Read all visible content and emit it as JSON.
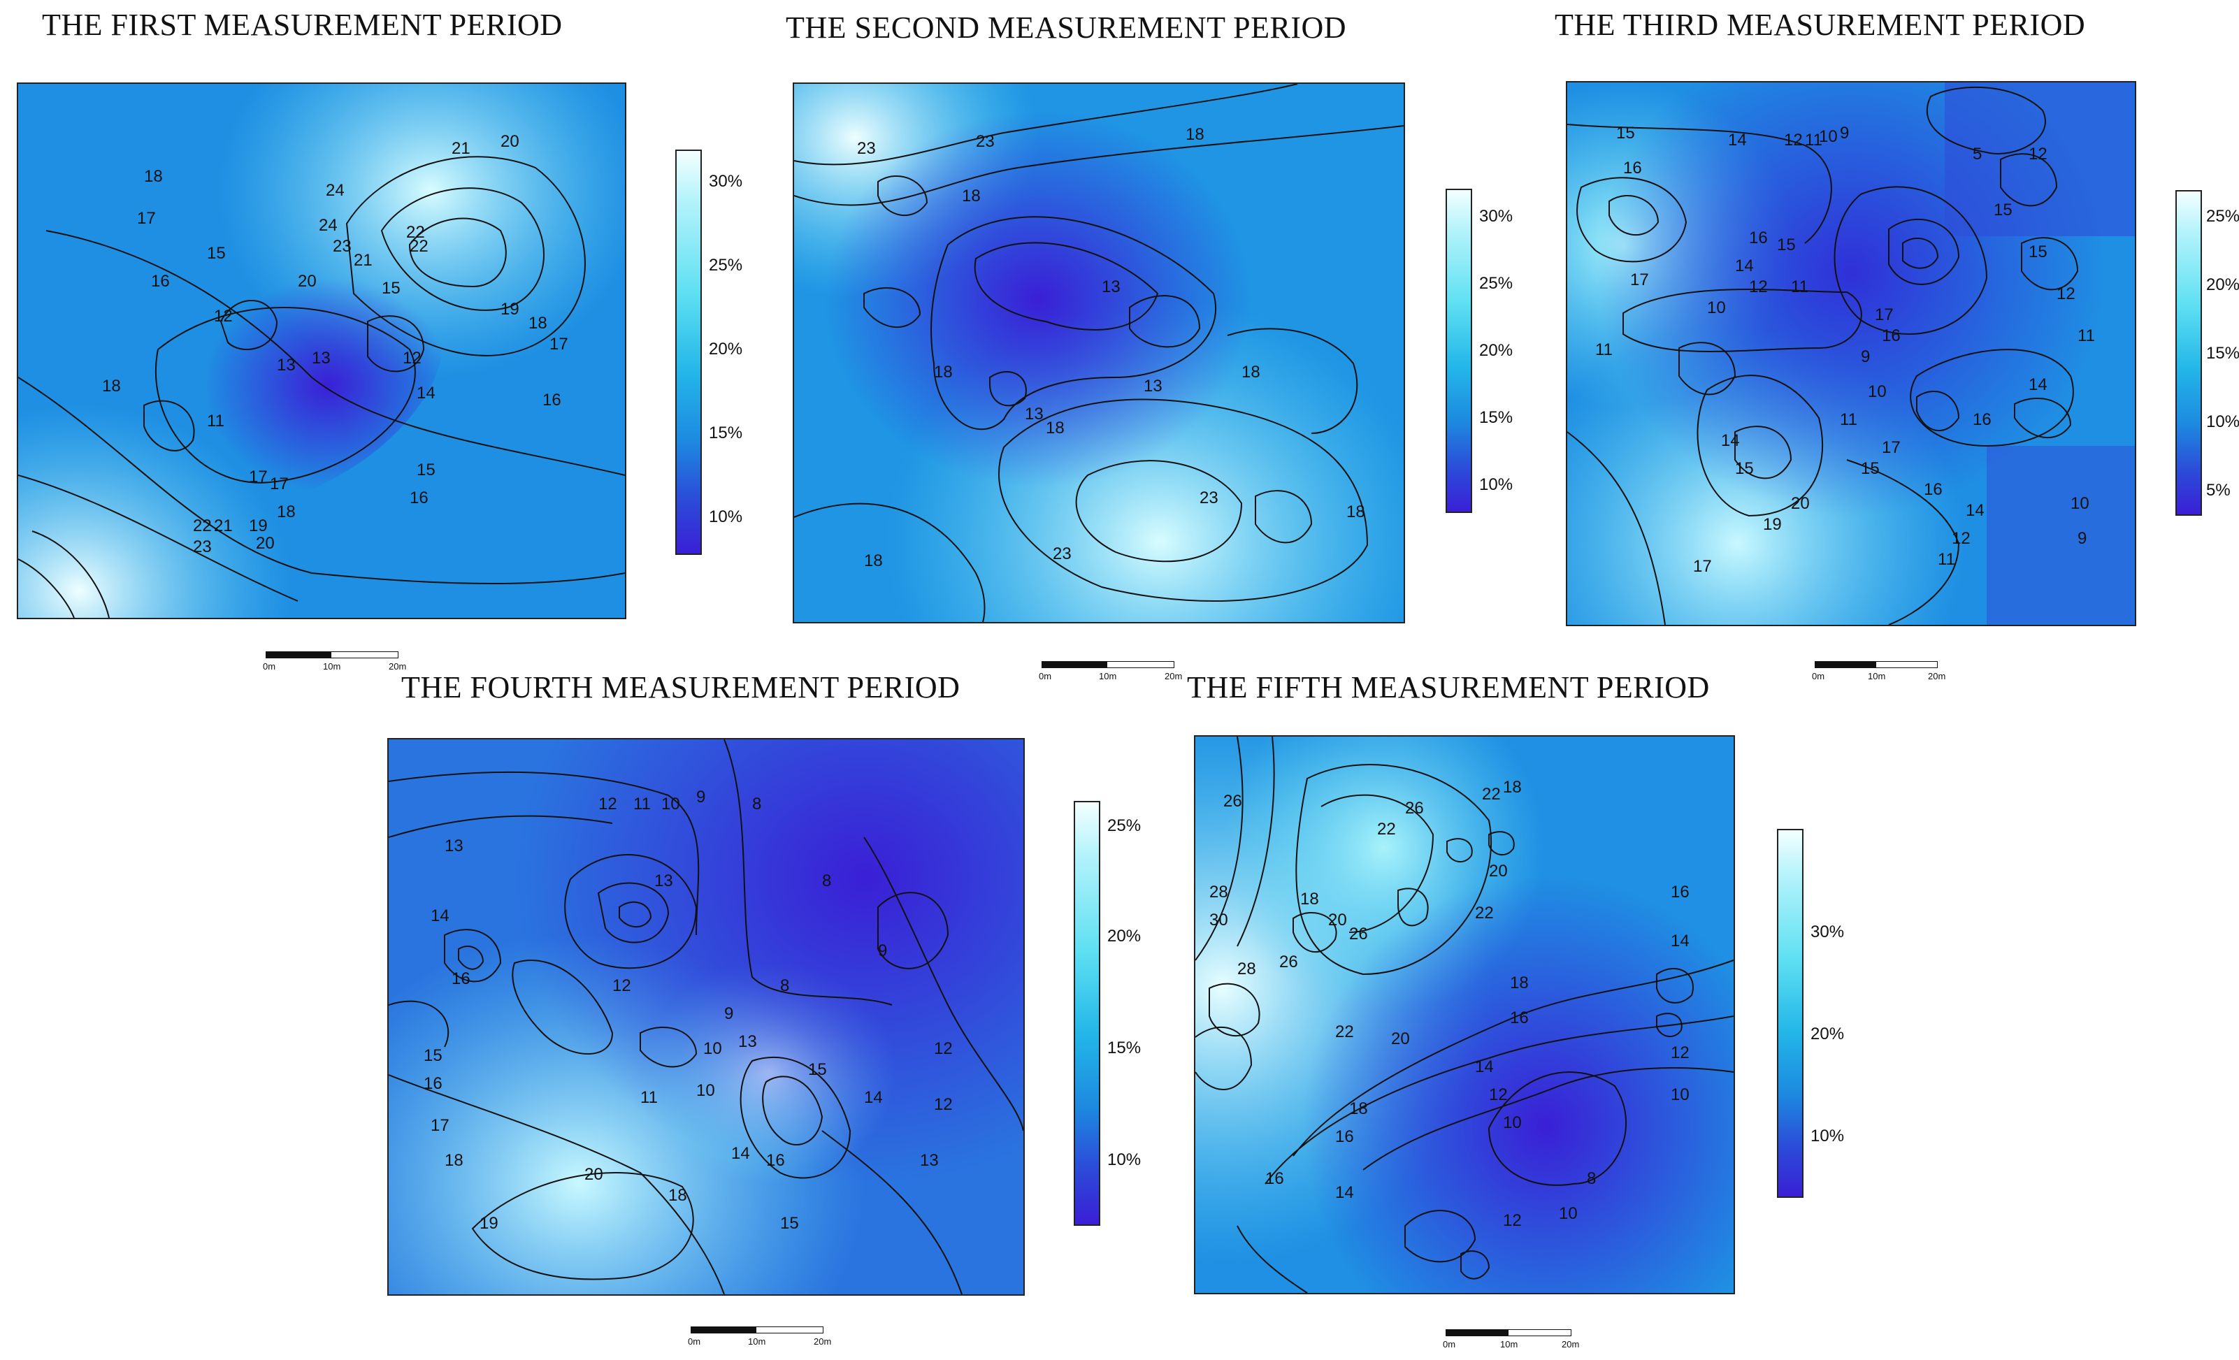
{
  "panels": [
    {
      "title": "THE FIRST MEASUREMENT PERIOD",
      "legend_labels": [
        "30%",
        "25%",
        "20%",
        "15%",
        "10%"
      ],
      "scale_labels": [
        "0m",
        "10m",
        "20m"
      ],
      "contour_labels": [
        "18",
        "17",
        "16",
        "15",
        "12",
        "17",
        "18",
        "19",
        "20",
        "21",
        "22",
        "23",
        "24",
        "22",
        "21",
        "20",
        "19",
        "18",
        "17",
        "16",
        "15",
        "14",
        "13",
        "12",
        "11",
        "24",
        "23",
        "22",
        "21",
        "20",
        "18",
        "13",
        "17",
        "16",
        "15"
      ],
      "colors": {
        "low": "#3a1fd6",
        "mid": "#1e9be6",
        "high": "#cffaff"
      }
    },
    {
      "title": "THE SECOND MEASUREMENT PERIOD",
      "legend_labels": [
        "30%",
        "25%",
        "20%",
        "15%",
        "10%"
      ],
      "scale_labels": [
        "0m",
        "10m",
        "20m"
      ],
      "contour_labels": [
        "23",
        "23",
        "18",
        "18",
        "13",
        "13",
        "18",
        "18",
        "13",
        "18",
        "23",
        "23",
        "18",
        "18"
      ],
      "colors": {
        "low": "#3a1fd6",
        "mid": "#1e9be6",
        "high": "#cffaff"
      }
    },
    {
      "title": "THE THIRD MEASUREMENT PERIOD",
      "legend_labels": [
        "25%",
        "20%",
        "15%",
        "10%",
        "5%"
      ],
      "scale_labels": [
        "0m",
        "10m",
        "20m"
      ],
      "contour_labels": [
        "15",
        "14",
        "12",
        "11",
        "10",
        "9",
        "5",
        "12",
        "16",
        "16",
        "15",
        "14",
        "12",
        "11",
        "10",
        "17",
        "11",
        "15",
        "16",
        "17",
        "15",
        "14",
        "12",
        "11",
        "9",
        "10",
        "11",
        "16",
        "14",
        "15",
        "17",
        "20",
        "19",
        "17",
        "16",
        "15",
        "14",
        "12",
        "11",
        "10",
        "9"
      ],
      "colors": {
        "low": "#3a1fd6",
        "mid": "#1e9be6",
        "high": "#cffaff"
      }
    },
    {
      "title": "THE FOURTH MEASUREMENT PERIOD",
      "legend_labels": [
        "25%",
        "20%",
        "15%",
        "10%"
      ],
      "scale_labels": [
        "0m",
        "10m",
        "20m"
      ],
      "contour_labels": [
        "12",
        "11",
        "10",
        "9",
        "8",
        "8",
        "13",
        "13",
        "14",
        "16",
        "12",
        "9",
        "8",
        "9",
        "15",
        "16",
        "17",
        "18",
        "19",
        "20",
        "18",
        "11",
        "10",
        "13",
        "15",
        "14",
        "12",
        "13",
        "15",
        "16",
        "14",
        "10",
        "12"
      ],
      "colors": {
        "low": "#3a1fd6",
        "mid": "#1e9be6",
        "high": "#cffaff"
      }
    },
    {
      "title": "THE FIFTH MEASUREMENT PERIOD",
      "legend_labels": [
        "30%",
        "20%",
        "10%"
      ],
      "scale_labels": [
        "0m",
        "10m",
        "20m"
      ],
      "contour_labels": [
        "26",
        "26",
        "22",
        "22",
        "18",
        "28",
        "30",
        "18",
        "20",
        "26",
        "28",
        "26",
        "20",
        "22",
        "22",
        "18",
        "16",
        "16",
        "14",
        "12",
        "10",
        "20",
        "18",
        "16",
        "14",
        "12",
        "10",
        "8",
        "10",
        "12",
        "14",
        "16"
      ],
      "colors": {
        "low": "#3a1fd6",
        "mid": "#1e9be6",
        "high": "#cffaff"
      }
    }
  ]
}
